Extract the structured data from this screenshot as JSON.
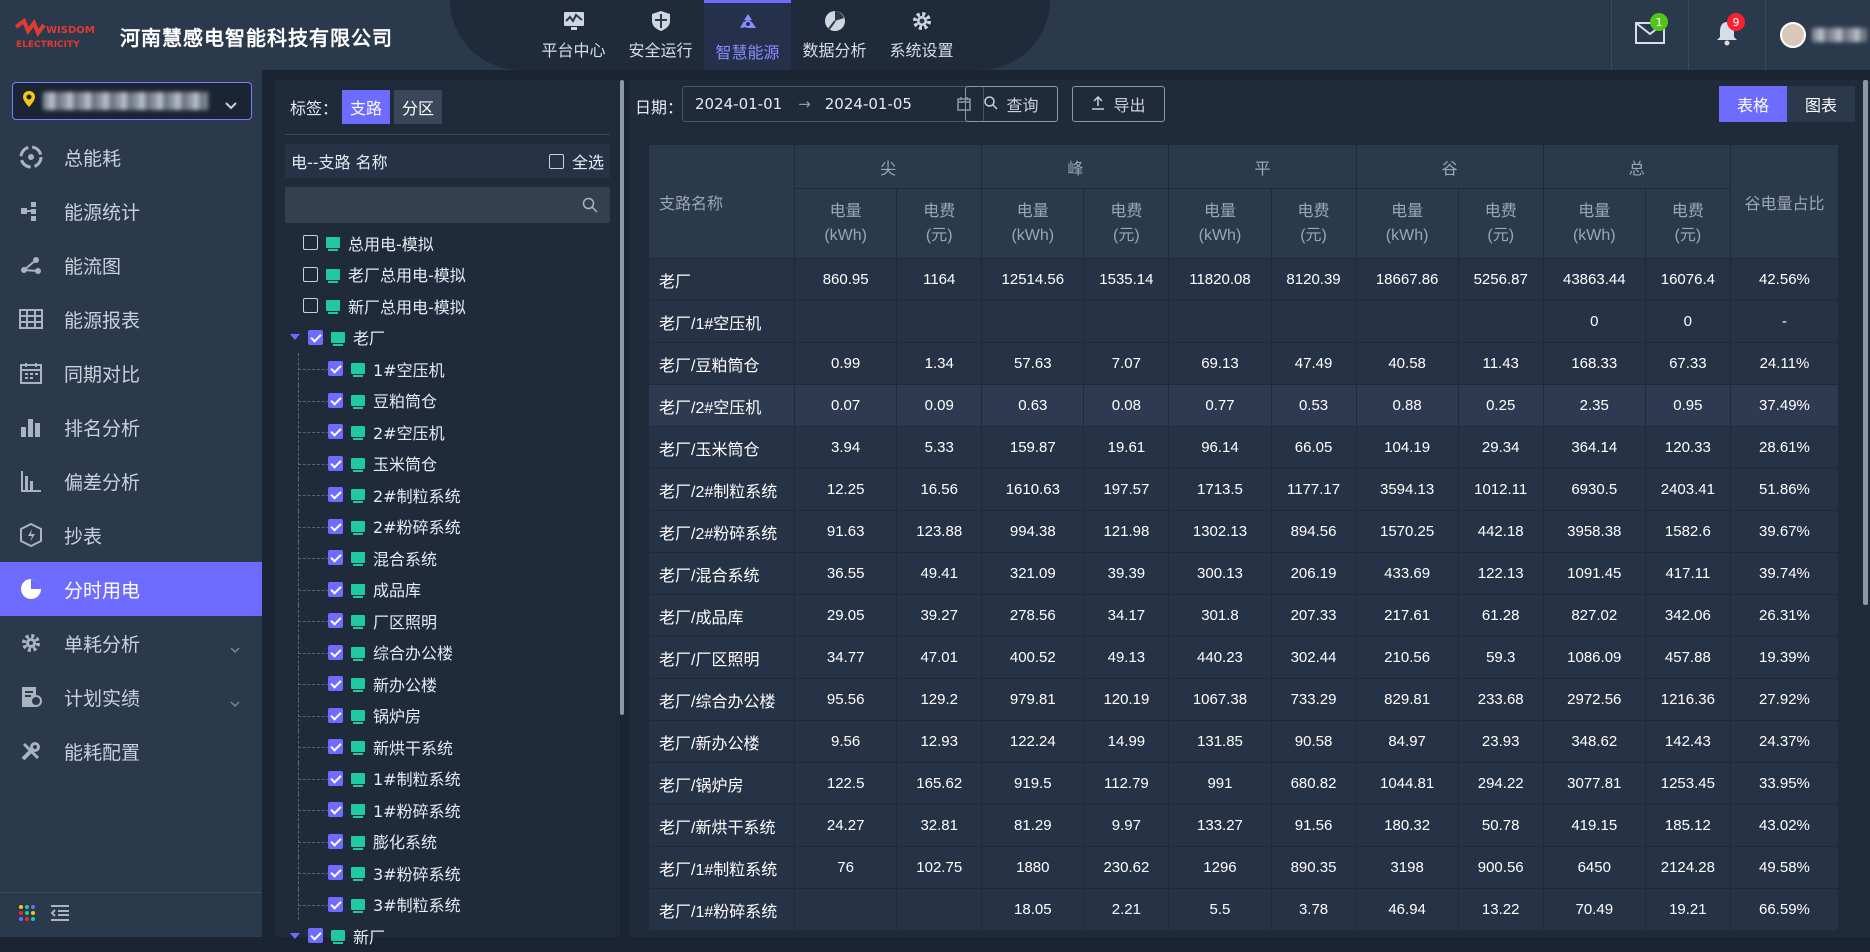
{
  "header": {
    "logo_text": "WISDOM ELECTRICITY",
    "company": "河南慧感电智能科技有限公司",
    "nav": [
      {
        "label": "平台中心",
        "icon": "monitor-icon",
        "active": false
      },
      {
        "label": "安全运行",
        "icon": "shield-icon",
        "active": false
      },
      {
        "label": "智慧能源",
        "icon": "recycle-icon",
        "active": true
      },
      {
        "label": "数据分析",
        "icon": "pie-icon",
        "active": false
      },
      {
        "label": "系统设置",
        "icon": "gear-icon",
        "active": false
      }
    ],
    "mail_badge": "1",
    "bell_badge": "9",
    "mail_badge_color": "#52c41a",
    "bell_badge_color": "#f5222d"
  },
  "sidebar": {
    "menu": [
      {
        "label": "总能耗",
        "icon": "recycle-icon"
      },
      {
        "label": "能源统计",
        "icon": "stats-icon"
      },
      {
        "label": "能流图",
        "icon": "flow-icon"
      },
      {
        "label": "能源报表",
        "icon": "table-icon"
      },
      {
        "label": "同期对比",
        "icon": "calendar-icon"
      },
      {
        "label": "排名分析",
        "icon": "bar-chart-icon"
      },
      {
        "label": "偏差分析",
        "icon": "column-chart-icon"
      },
      {
        "label": "抄表",
        "icon": "meter-icon"
      },
      {
        "label": "分时用电",
        "icon": "clock-pie-icon",
        "active": true
      },
      {
        "label": "单耗分析",
        "icon": "cog-icon",
        "expandable": true
      },
      {
        "label": "计划实绩",
        "icon": "doc-chart-icon",
        "expandable": true
      },
      {
        "label": "能耗配置",
        "icon": "tools-icon"
      }
    ]
  },
  "tree": {
    "tag_label": "标签：",
    "tab_branch": "支路",
    "tab_zone": "分区",
    "head_title": "电--支路 名称",
    "select_all": "全选",
    "nodes": [
      {
        "label": "总用电-模拟",
        "checked": false,
        "level": 0
      },
      {
        "label": "老厂总用电-模拟",
        "checked": false,
        "level": 0
      },
      {
        "label": "新厂总用电-模拟",
        "checked": false,
        "level": 0
      },
      {
        "label": "老厂",
        "checked": true,
        "level": 0,
        "expanded": true
      },
      {
        "label": "1#空压机",
        "checked": true,
        "level": 1
      },
      {
        "label": "豆粕筒仓",
        "checked": true,
        "level": 1
      },
      {
        "label": "2#空压机",
        "checked": true,
        "level": 1
      },
      {
        "label": "玉米筒仓",
        "checked": true,
        "level": 1
      },
      {
        "label": "2#制粒系统",
        "checked": true,
        "level": 1
      },
      {
        "label": "2#粉碎系统",
        "checked": true,
        "level": 1
      },
      {
        "label": "混合系统",
        "checked": true,
        "level": 1
      },
      {
        "label": "成品库",
        "checked": true,
        "level": 1
      },
      {
        "label": "厂区照明",
        "checked": true,
        "level": 1
      },
      {
        "label": "综合办公楼",
        "checked": true,
        "level": 1
      },
      {
        "label": "新办公楼",
        "checked": true,
        "level": 1
      },
      {
        "label": "锅炉房",
        "checked": true,
        "level": 1
      },
      {
        "label": "新烘干系统",
        "checked": true,
        "level": 1
      },
      {
        "label": "1#制粒系统",
        "checked": true,
        "level": 1
      },
      {
        "label": "1#粉碎系统",
        "checked": true,
        "level": 1
      },
      {
        "label": "膨化系统",
        "checked": true,
        "level": 1
      },
      {
        "label": "3#粉碎系统",
        "checked": true,
        "level": 1
      },
      {
        "label": "3#制粒系统",
        "checked": true,
        "level": 1
      },
      {
        "label": "新厂",
        "checked": true,
        "level": 0,
        "expanded": true
      }
    ]
  },
  "toolbar": {
    "date_label": "日期：",
    "start_date": "2024-01-01",
    "arrow": "→",
    "end_date": "2024-01-05",
    "query_label": "查询",
    "export_label": "导出",
    "view_table": "表格",
    "view_chart": "图表"
  },
  "table": {
    "name_header": "支路名称",
    "groups": [
      "尖",
      "峰",
      "平",
      "谷",
      "总"
    ],
    "sub_power": "电量\n(kWh)",
    "sub_fee": "电费\n(元)",
    "ratio_header": "谷电量占比",
    "rows": [
      [
        "老厂",
        "860.95",
        "1164",
        "12514.56",
        "1535.14",
        "11820.08",
        "8120.39",
        "18667.86",
        "5256.87",
        "43863.44",
        "16076.4",
        "42.56%"
      ],
      [
        "老厂/1#空压机",
        "",
        "",
        "",
        "",
        "",
        "",
        "",
        "",
        "0",
        "0",
        "-"
      ],
      [
        "老厂/豆粕筒仓",
        "0.99",
        "1.34",
        "57.63",
        "7.07",
        "69.13",
        "47.49",
        "40.58",
        "11.43",
        "168.33",
        "67.33",
        "24.11%"
      ],
      [
        "老厂/2#空压机",
        "0.07",
        "0.09",
        "0.63",
        "0.08",
        "0.77",
        "0.53",
        "0.88",
        "0.25",
        "2.35",
        "0.95",
        "37.49%"
      ],
      [
        "老厂/玉米筒仓",
        "3.94",
        "5.33",
        "159.87",
        "19.61",
        "96.14",
        "66.05",
        "104.19",
        "29.34",
        "364.14",
        "120.33",
        "28.61%"
      ],
      [
        "老厂/2#制粒系统",
        "12.25",
        "16.56",
        "1610.63",
        "197.57",
        "1713.5",
        "1177.17",
        "3594.13",
        "1012.11",
        "6930.5",
        "2403.41",
        "51.86%"
      ],
      [
        "老厂/2#粉碎系统",
        "91.63",
        "123.88",
        "994.38",
        "121.98",
        "1302.13",
        "894.56",
        "1570.25",
        "442.18",
        "3958.38",
        "1582.6",
        "39.67%"
      ],
      [
        "老厂/混合系统",
        "36.55",
        "49.41",
        "321.09",
        "39.39",
        "300.13",
        "206.19",
        "433.69",
        "122.13",
        "1091.45",
        "417.11",
        "39.74%"
      ],
      [
        "老厂/成品库",
        "29.05",
        "39.27",
        "278.56",
        "34.17",
        "301.8",
        "207.33",
        "217.61",
        "61.28",
        "827.02",
        "342.06",
        "26.31%"
      ],
      [
        "老厂/厂区照明",
        "34.77",
        "47.01",
        "400.52",
        "49.13",
        "440.23",
        "302.44",
        "210.56",
        "59.3",
        "1086.09",
        "457.88",
        "19.39%"
      ],
      [
        "老厂/综合办公楼",
        "95.56",
        "129.2",
        "979.81",
        "120.19",
        "1067.38",
        "733.29",
        "829.81",
        "233.68",
        "2972.56",
        "1216.36",
        "27.92%"
      ],
      [
        "老厂/新办公楼",
        "9.56",
        "12.93",
        "122.24",
        "14.99",
        "131.85",
        "90.58",
        "84.97",
        "23.93",
        "348.62",
        "142.43",
        "24.37%"
      ],
      [
        "老厂/锅炉房",
        "122.5",
        "165.62",
        "919.5",
        "112.79",
        "991",
        "680.82",
        "1044.81",
        "294.22",
        "3077.81",
        "1253.45",
        "33.95%"
      ],
      [
        "老厂/新烘干系统",
        "24.27",
        "32.81",
        "81.29",
        "9.97",
        "133.27",
        "91.56",
        "180.32",
        "50.78",
        "419.15",
        "185.12",
        "43.02%"
      ],
      [
        "老厂/1#制粒系统",
        "76",
        "102.75",
        "1880",
        "230.62",
        "1296",
        "890.35",
        "3198",
        "900.56",
        "6450",
        "2124.28",
        "49.58%"
      ],
      [
        "老厂/1#粉碎系统",
        "",
        "",
        "18.05",
        "2.21",
        "5.5",
        "3.78",
        "46.94",
        "13.22",
        "70.49",
        "19.21",
        "66.59%"
      ]
    ],
    "highlight_row": 3
  },
  "colors": {
    "accent": "#6e6cff",
    "bg": "#1b2433",
    "panel": "#2b394d",
    "leaf_icon": "#21c9a0"
  }
}
